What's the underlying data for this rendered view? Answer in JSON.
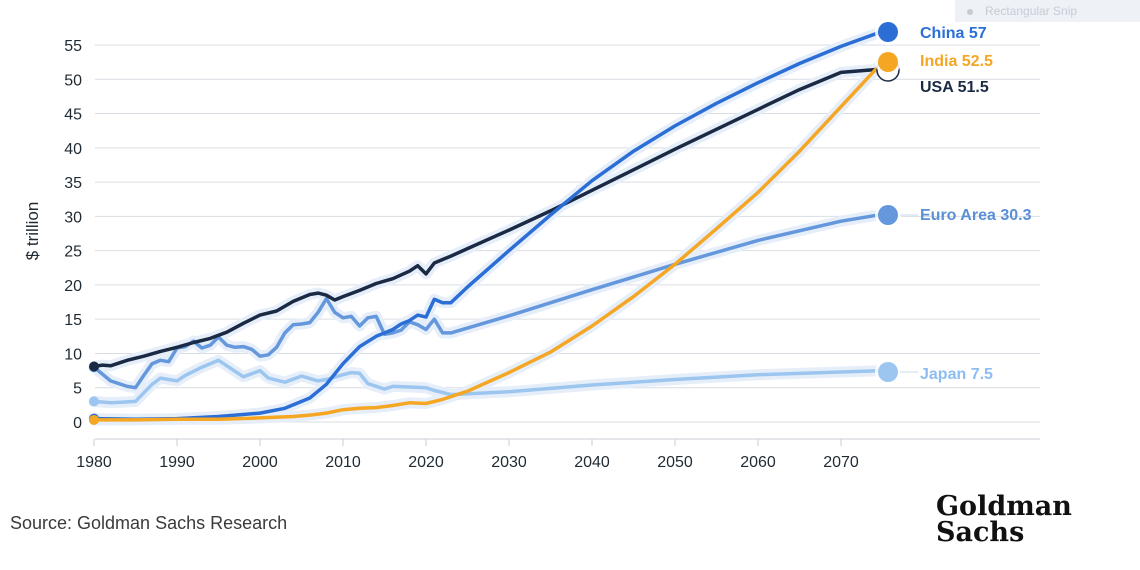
{
  "overlay": {
    "snip_label": "Rectangular Snip"
  },
  "source": "Source: Goldman Sachs Research",
  "logo": {
    "line1": "Goldman",
    "line2": "Sachs"
  },
  "chart_data": {
    "type": "line",
    "title": "",
    "xlabel": "",
    "ylabel": "$ trillion",
    "xlim": [
      1980,
      2075
    ],
    "ylim": [
      0,
      57
    ],
    "grid": true,
    "x_ticks": [
      "1980",
      "1990",
      "2000",
      "2010",
      "2020",
      "2030",
      "2040",
      "2050",
      "2060",
      "2070"
    ],
    "y_ticks": [
      "0",
      "5",
      "10",
      "15",
      "20",
      "25",
      "30",
      "35",
      "40",
      "45",
      "50",
      "55"
    ],
    "legend": "end-of-line labels, right",
    "series": [
      {
        "name": "Japan",
        "end_label": "Japan 7.5",
        "color": "#9cc6ef",
        "x": [
          1980,
          1982,
          1985,
          1987,
          1988,
          1990,
          1991,
          1993,
          1995,
          1997,
          1998,
          2000,
          2001,
          2003,
          2005,
          2007,
          2008,
          2010,
          2011,
          2012,
          2013,
          2015,
          2016,
          2018,
          2020,
          2021,
          2022,
          2023,
          2030,
          2040,
          2050,
          2060,
          2070,
          2075
        ],
        "y": [
          3.0,
          2.8,
          3.0,
          5.5,
          6.4,
          6.0,
          6.8,
          8.0,
          9.0,
          7.4,
          6.6,
          7.5,
          6.4,
          5.8,
          6.7,
          6.0,
          6.2,
          6.9,
          7.2,
          7.1,
          5.6,
          4.8,
          5.2,
          5.1,
          5.0,
          4.6,
          4.3,
          4.0,
          4.4,
          5.4,
          6.2,
          6.9,
          7.3,
          7.5
        ]
      },
      {
        "name": "Euro Area",
        "end_label": "Euro Area 30.3",
        "color": "#6497dc",
        "x": [
          1980,
          1982,
          1984,
          1985,
          1986,
          1987,
          1988,
          1989,
          1990,
          1991,
          1992,
          1993,
          1994,
          1995,
          1996,
          1997,
          1998,
          1999,
          2000,
          2001,
          2002,
          2003,
          2004,
          2005,
          2006,
          2007,
          2008,
          2009,
          2010,
          2011,
          2012,
          2013,
          2014,
          2015,
          2016,
          2017,
          2018,
          2019,
          2020,
          2021,
          2022,
          2023,
          2030,
          2040,
          2050,
          2060,
          2070,
          2075
        ],
        "y": [
          8.0,
          6.0,
          5.2,
          5.0,
          6.8,
          8.5,
          9.0,
          8.8,
          10.8,
          11.0,
          11.8,
          10.8,
          11.2,
          12.4,
          11.2,
          10.9,
          11.0,
          10.6,
          9.6,
          9.8,
          10.9,
          13.0,
          14.2,
          14.3,
          14.5,
          16.0,
          18.0,
          16.0,
          15.2,
          15.4,
          14.0,
          15.2,
          15.4,
          12.8,
          13.0,
          13.4,
          14.6,
          14.2,
          13.5,
          15.0,
          13.0,
          13.0,
          15.5,
          19.3,
          23.0,
          26.5,
          29.3,
          30.3
        ]
      },
      {
        "name": "USA",
        "end_label": "USA 51.5",
        "color": "#1b2a44",
        "x": [
          1980,
          1981,
          1982,
          1984,
          1986,
          1988,
          1990,
          1992,
          1994,
          1996,
          1998,
          2000,
          2002,
          2004,
          2006,
          2007,
          2008,
          2009,
          2010,
          2012,
          2014,
          2016,
          2018,
          2019,
          2020,
          2021,
          2022,
          2023,
          2025,
          2030,
          2035,
          2040,
          2045,
          2050,
          2055,
          2060,
          2065,
          2070,
          2075
        ],
        "y": [
          8.1,
          8.3,
          8.2,
          9.0,
          9.6,
          10.3,
          10.9,
          11.6,
          12.2,
          13.1,
          14.4,
          15.6,
          16.2,
          17.6,
          18.6,
          18.8,
          18.5,
          17.8,
          18.3,
          19.2,
          20.2,
          20.9,
          22.0,
          22.8,
          21.6,
          23.2,
          23.7,
          24.2,
          25.3,
          28.0,
          30.8,
          33.8,
          36.8,
          39.8,
          42.7,
          45.6,
          48.5,
          51.0,
          51.5
        ]
      },
      {
        "name": "China",
        "end_label": "China 57",
        "color": "#2a6ed6",
        "x": [
          1980,
          1985,
          1990,
          1995,
          2000,
          2003,
          2006,
          2008,
          2010,
          2012,
          2014,
          2016,
          2017,
          2018,
          2019,
          2020,
          2021,
          2022,
          2023,
          2025,
          2030,
          2035,
          2040,
          2045,
          2050,
          2055,
          2060,
          2065,
          2070,
          2075
        ],
        "y": [
          0.5,
          0.4,
          0.5,
          0.8,
          1.3,
          2.0,
          3.5,
          5.5,
          8.5,
          11.0,
          12.5,
          13.5,
          14.3,
          14.8,
          15.6,
          15.3,
          17.9,
          17.4,
          17.4,
          19.7,
          25.0,
          30.2,
          35.2,
          39.5,
          43.2,
          46.5,
          49.5,
          52.3,
          54.8,
          57.0
        ]
      },
      {
        "name": "India",
        "end_label": "India 52.5",
        "color": "#f5a623",
        "x": [
          1980,
          1985,
          1990,
          1995,
          2000,
          2004,
          2006,
          2008,
          2010,
          2012,
          2014,
          2016,
          2018,
          2020,
          2022,
          2025,
          2030,
          2035,
          2040,
          2045,
          2050,
          2055,
          2060,
          2065,
          2070,
          2075
        ],
        "y": [
          0.3,
          0.3,
          0.4,
          0.4,
          0.6,
          0.8,
          1.0,
          1.3,
          1.8,
          2.0,
          2.1,
          2.4,
          2.8,
          2.7,
          3.3,
          4.5,
          7.2,
          10.2,
          14.0,
          18.3,
          23.0,
          28.2,
          33.5,
          39.5,
          46.0,
          52.5
        ]
      }
    ]
  }
}
